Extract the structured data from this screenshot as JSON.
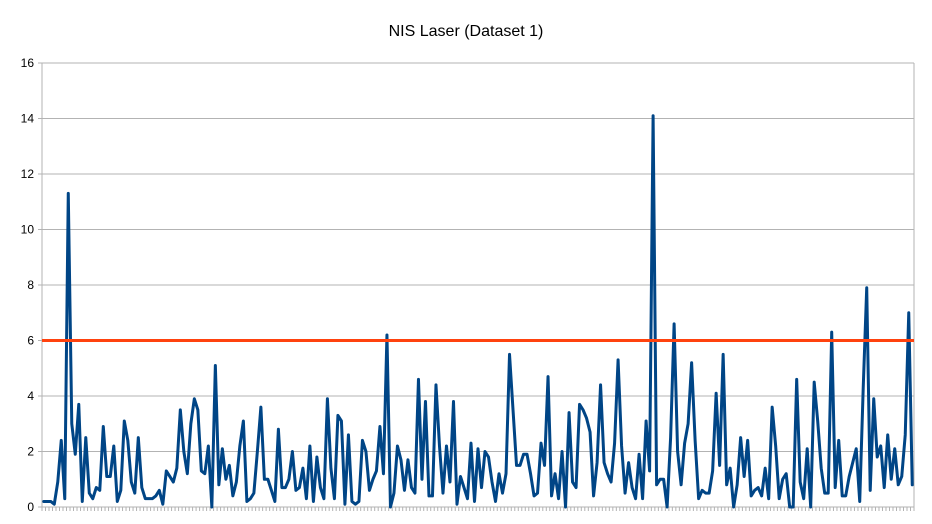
{
  "chart_data": {
    "type": "line",
    "title": "NIS Laser (Dataset 1)",
    "xlabel": "",
    "ylabel": "",
    "ylim": [
      0,
      16
    ],
    "yticks": [
      0,
      2,
      4,
      6,
      8,
      10,
      12,
      14,
      16
    ],
    "grid": "horizontal",
    "legend": "none",
    "series": [
      {
        "color": "#004586",
        "values": [
          0.2,
          0.2,
          0.2,
          0.1,
          0.9,
          2.4,
          0.3,
          11.3,
          3.0,
          1.9,
          3.7,
          0.2,
          2.5,
          0.5,
          0.3,
          0.7,
          0.6,
          2.9,
          1.1,
          1.1,
          2.2,
          0.2,
          0.6,
          3.1,
          2.4,
          0.9,
          0.5,
          2.5,
          0.7,
          0.3,
          0.3,
          0.3,
          0.4,
          0.6,
          0.1,
          1.3,
          1.1,
          0.9,
          1.4,
          3.5,
          2.0,
          1.2,
          3.0,
          3.9,
          3.5,
          1.3,
          1.2,
          2.2,
          0.0,
          5.1,
          0.8,
          2.1,
          1.0,
          1.5,
          0.4,
          0.9,
          2.2,
          3.1,
          0.2,
          0.3,
          0.5,
          2.0,
          3.6,
          1.0,
          1.0,
          0.6,
          0.2,
          2.8,
          0.7,
          0.7,
          1.0,
          2.0,
          0.6,
          0.7,
          1.4,
          0.3,
          2.2,
          0.2,
          1.8,
          0.7,
          0.3,
          3.9,
          1.4,
          0.3,
          3.3,
          3.1,
          0.1,
          2.6,
          0.2,
          0.1,
          0.2,
          2.4,
          2.0,
          0.6,
          1.0,
          1.3,
          2.9,
          1.2,
          6.2,
          0.0,
          0.5,
          2.2,
          1.7,
          0.6,
          1.7,
          0.7,
          0.5,
          4.6,
          1.0,
          3.8,
          0.4,
          0.4,
          4.4,
          2.2,
          0.5,
          2.2,
          0.9,
          3.8,
          0.1,
          1.1,
          0.7,
          0.3,
          2.3,
          0.2,
          2.1,
          0.7,
          2.0,
          1.8,
          0.9,
          0.2,
          1.2,
          0.5,
          1.2,
          5.5,
          3.5,
          1.5,
          1.5,
          1.9,
          1.9,
          1.2,
          0.4,
          0.5,
          2.3,
          1.5,
          4.7,
          0.4,
          1.2,
          0.3,
          2.0,
          0.0,
          3.4,
          0.9,
          0.7,
          3.7,
          3.5,
          3.2,
          2.7,
          0.4,
          1.6,
          4.4,
          1.6,
          1.2,
          0.9,
          2.3,
          5.3,
          2.2,
          0.5,
          1.6,
          0.7,
          0.3,
          1.9,
          0.3,
          3.1,
          1.3,
          14.1,
          0.8,
          1.0,
          1.0,
          0.0,
          2.5,
          6.6,
          2.0,
          0.8,
          2.3,
          3.0,
          5.2,
          2.4,
          0.3,
          0.6,
          0.5,
          0.5,
          1.3,
          4.1,
          1.5,
          5.5,
          0.8,
          1.4,
          0.0,
          0.8,
          2.5,
          1.1,
          2.4,
          0.4,
          0.6,
          0.7,
          0.4,
          1.4,
          0.3,
          3.6,
          2.2,
          0.3,
          1.0,
          1.2,
          0.0,
          0.0,
          4.6,
          0.9,
          0.3,
          2.1,
          0.0,
          4.5,
          3.1,
          1.4,
          0.5,
          0.5,
          6.3,
          0.7,
          2.4,
          0.4,
          0.4,
          1.1,
          1.6,
          2.1,
          0.2,
          4.3,
          7.9,
          0.6,
          3.9,
          1.8,
          2.2,
          0.7,
          2.6,
          1.0,
          2.1,
          0.8,
          1.1,
          2.6,
          7.0,
          0.8
        ]
      }
    ],
    "threshold": {
      "value": 6,
      "color": "#ff420e"
    }
  }
}
